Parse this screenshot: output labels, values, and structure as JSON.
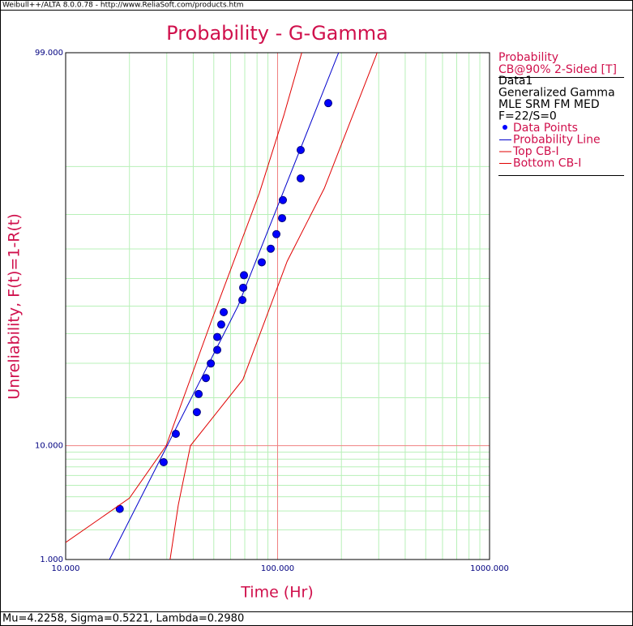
{
  "header": "Weibull++/ALTA 8.0.0.78 - http://www.ReliaSoft.com/products.htm",
  "status": "Mu=4.2258, Sigma=0.5221, Lambda=0.2980",
  "chart_data": {
    "type": "probability",
    "title": "Probability - G-Gamma",
    "xlabel": "Time (Hr)",
    "ylabel": "Unreliability, F(t)=1-R(t)",
    "xscale": "log",
    "yscale": "normal-probability",
    "xlim": [
      10,
      1000
    ],
    "ylim": [
      1,
      99
    ],
    "xticks": [
      {
        "value": 10,
        "label": "10.000"
      },
      {
        "value": 100,
        "label": "100.000"
      },
      {
        "value": 1000,
        "label": "1000.000"
      }
    ],
    "yticks": [
      {
        "value": 1,
        "label": "1.000"
      },
      {
        "value": 10,
        "label": "10.000"
      },
      {
        "value": 99,
        "label": "99.000"
      }
    ],
    "xminor": [
      20,
      30,
      40,
      50,
      60,
      70,
      80,
      90,
      200,
      300,
      400,
      500,
      600,
      700,
      800,
      900
    ],
    "yminor": [
      2,
      3,
      4,
      5,
      6,
      7,
      8,
      9,
      20,
      30,
      40,
      50,
      60,
      70,
      80,
      90
    ],
    "major_grid_color": "#f08080",
    "minor_grid_color": "#b8f0b8",
    "legend_title": "Probability",
    "legend_subtitle": "CB@90% 2-Sided [T]",
    "info": [
      "Data1",
      "Generalized Gamma",
      "MLE SRM FM MED",
      "F=22/S=0"
    ],
    "series": [
      {
        "name": "Data Points",
        "style": "points",
        "color": "#0000ff",
        "x": [
          18.0,
          29.0,
          33.1,
          41.6,
          42.4,
          45.9,
          48.4,
          51.9,
          51.9,
          54.2,
          55.7,
          68.2,
          68.8,
          69.4,
          84.2,
          92.8,
          98.7,
          105.0,
          105.9,
          128.5,
          128.5,
          173.4
        ],
        "y": [
          3.13,
          7.59,
          12.05,
          16.52,
          20.98,
          25.45,
          29.91,
          34.38,
          38.84,
          43.3,
          47.77,
          52.23,
          56.7,
          61.16,
          65.63,
          70.09,
          74.55,
          79.02,
          83.48,
          87.95,
          92.41,
          96.88
        ]
      },
      {
        "name": "Probability Line",
        "style": "line",
        "color": "#0000cc",
        "x": [
          16.1,
          65,
          194
        ],
        "y": [
          1,
          50,
          99
        ]
      },
      {
        "name": "Top CB-I",
        "style": "line",
        "color": "#e00000",
        "x": [
          10,
          20,
          29.8,
          48.4,
          82,
          107,
          130
        ],
        "y": [
          1.5,
          3.9,
          10,
          44,
          85,
          96,
          99
        ]
      },
      {
        "name": "Bottom CB-I",
        "style": "line",
        "color": "#e00000",
        "x": [
          31.1,
          34,
          38.8,
          68.6,
          111,
          166,
          295
        ],
        "y": [
          1,
          3.4,
          10,
          25,
          66,
          86,
          99
        ]
      }
    ]
  }
}
